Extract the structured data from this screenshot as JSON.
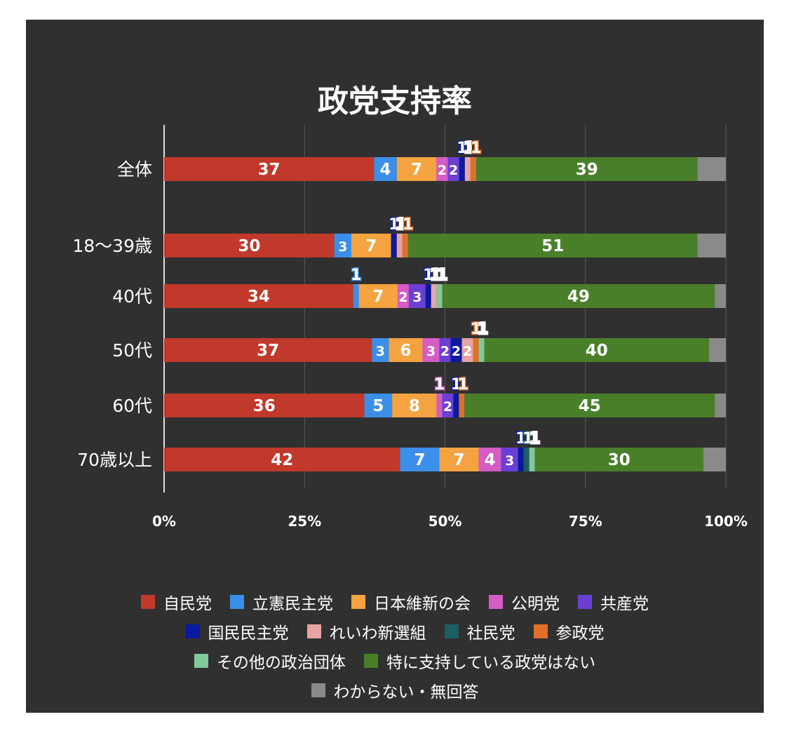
{
  "chart_data": {
    "type": "bar",
    "orientation": "horizontal",
    "stacked": true,
    "percent_stacked": true,
    "title": "政党支持率",
    "categories": [
      "全体",
      "18〜39歳",
      "40代",
      "50代",
      "60代",
      "70歳以上"
    ],
    "x_ticks": [
      "0%",
      "25%",
      "50%",
      "75%",
      "100%"
    ],
    "xlim": [
      0,
      100
    ],
    "grid": true,
    "legend_position": "bottom",
    "series": [
      {
        "name": "自民党",
        "color": "#C0392B",
        "values": [
          37,
          30,
          34,
          37,
          36,
          42
        ],
        "labels": [
          "37",
          "30",
          "34",
          "37",
          "36",
          "42"
        ]
      },
      {
        "name": "立憲民主党",
        "color": "#3B8EEA",
        "values": [
          4,
          3,
          1,
          3,
          5,
          7
        ],
        "labels": [
          "4",
          "3",
          "1",
          "3",
          "5",
          "7"
        ]
      },
      {
        "name": "日本維新の会",
        "color": "#F4A340",
        "values": [
          7,
          7,
          7,
          6,
          8,
          7
        ],
        "labels": [
          "7",
          "7",
          "7",
          "6",
          "8",
          "7"
        ]
      },
      {
        "name": "公明党",
        "color": "#D65BC4",
        "values": [
          2,
          0,
          2,
          3,
          1,
          4
        ],
        "labels": [
          "2",
          "",
          "2",
          "3",
          "1",
          "4"
        ]
      },
      {
        "name": "共産党",
        "color": "#6B3FD4",
        "values": [
          2,
          0,
          3,
          2,
          2,
          3
        ],
        "labels": [
          "2",
          "",
          "3",
          "2",
          "2",
          "3"
        ]
      },
      {
        "name": "国民民主党",
        "color": "#0A1A9E",
        "values": [
          1,
          1,
          1,
          2,
          1,
          1
        ],
        "labels": [
          "1",
          "1",
          "1",
          "2",
          "1",
          "1"
        ]
      },
      {
        "name": "れいわ新選組",
        "color": "#E6A4A4",
        "values": [
          1,
          1,
          1,
          2,
          0,
          0
        ],
        "labels": [
          "1",
          "1",
          "1",
          "2",
          "",
          ""
        ]
      },
      {
        "name": "社民党",
        "color": "#1E5E62",
        "values": [
          0,
          0,
          0,
          0,
          0,
          1
        ],
        "labels": [
          "",
          "",
          "",
          "",
          "",
          "1"
        ]
      },
      {
        "name": "参政党",
        "color": "#E07028",
        "values": [
          1,
          1,
          0,
          1,
          1,
          0
        ],
        "labels": [
          "1",
          "1",
          "",
          "1",
          "1",
          ""
        ]
      },
      {
        "name": "その他の政治団体",
        "color": "#7FC99A",
        "values": [
          0,
          0,
          1,
          1,
          0,
          1
        ],
        "labels": [
          "",
          "",
          "1",
          "1",
          "",
          "1"
        ]
      },
      {
        "name": "特に支持している政党はない",
        "color": "#4A7F2A",
        "values": [
          39,
          51,
          49,
          40,
          45,
          30
        ],
        "labels": [
          "39",
          "51",
          "49",
          "40",
          "45",
          "30"
        ]
      },
      {
        "name": "わからない・無回答",
        "color": "#8A8A8A",
        "values": [
          5,
          5,
          2,
          3,
          2,
          4
        ],
        "labels": [
          "",
          "",
          "",
          "",
          "",
          ""
        ]
      }
    ]
  },
  "legend_rows": [
    [
      "自民党",
      "立憲民主党",
      "日本維新の会",
      "公明党",
      "共産党"
    ],
    [
      "国民民主党",
      "れいわ新選組",
      "社民党",
      "参政党"
    ],
    [
      "その他の政治団体",
      "特に支持している政党はない"
    ],
    [
      "わからない・無回答"
    ]
  ]
}
